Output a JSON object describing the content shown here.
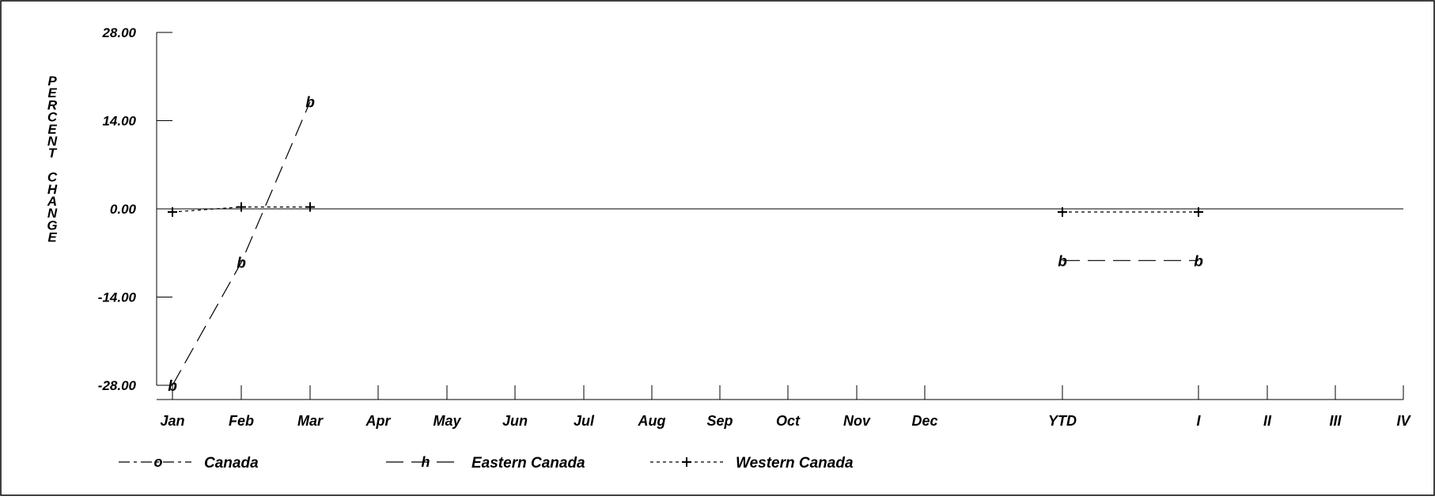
{
  "chart_data": {
    "type": "line",
    "title": "",
    "xlabel": "",
    "ylabel": "PERCENT CHANGE",
    "ylabel_lines": [
      "P",
      "E",
      "R",
      "C",
      "E",
      "N",
      "T",
      "",
      "C",
      "H",
      "A",
      "N",
      "G",
      "E"
    ],
    "ylim": [
      -28,
      28
    ],
    "yticks": [
      "28.00",
      "14.00",
      "0.00",
      "-14.00",
      "-28.00"
    ],
    "ytick_values": [
      28,
      14,
      0,
      -14,
      -28
    ],
    "categories": [
      "Jan",
      "Feb",
      "Mar",
      "Apr",
      "May",
      "Jun",
      "Jul",
      "Aug",
      "Sep",
      "Oct",
      "Nov",
      "Dec",
      "YTD",
      "I",
      "II",
      "III",
      "IV"
    ],
    "zero_line": true,
    "grid": false,
    "legend_position": "bottom",
    "series": [
      {
        "name": "Canada",
        "marker": "o",
        "dash": "dashdot",
        "values": [
          null,
          null,
          null,
          null,
          null,
          null,
          null,
          null,
          null,
          null,
          null,
          null,
          null,
          null,
          null,
          null,
          null
        ]
      },
      {
        "name": "Eastern Canada",
        "marker": "h",
        "marker_label": "b",
        "dash": "longdash",
        "values": [
          -28,
          -8.5,
          17,
          null,
          null,
          null,
          null,
          null,
          null,
          null,
          null,
          null,
          -8.2,
          -8.2,
          null,
          null,
          null
        ]
      },
      {
        "name": "Western Canada",
        "marker": "+",
        "dash": "dotted",
        "values": [
          -0.5,
          0.3,
          0.3,
          null,
          null,
          null,
          null,
          null,
          null,
          null,
          null,
          null,
          -0.5,
          -0.5,
          null,
          null,
          null
        ]
      }
    ]
  }
}
